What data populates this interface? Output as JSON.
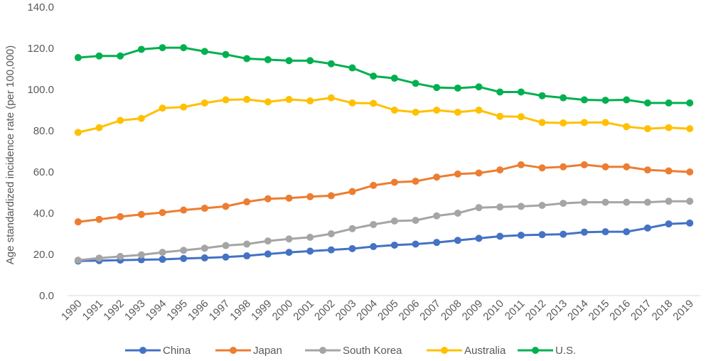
{
  "chart_data": {
    "type": "line",
    "title": "",
    "xlabel": "",
    "ylabel": "Age standardized incidence rate (per 100,000)",
    "ylim": [
      0,
      140
    ],
    "yticks": [
      "0.0",
      "20.0",
      "40.0",
      "60.0",
      "80.0",
      "100.0",
      "120.0",
      "140.0"
    ],
    "ytick_values": [
      0,
      20,
      40,
      60,
      80,
      100,
      120,
      140
    ],
    "grid": false,
    "legend_position": "bottom",
    "x": [
      "1990",
      "1991",
      "1992",
      "1993",
      "1994",
      "1995",
      "1996",
      "1997",
      "1998",
      "1999",
      "2000",
      "2001",
      "2002",
      "2003",
      "2004",
      "2005",
      "2006",
      "2007",
      "2008",
      "2009",
      "2010",
      "2011",
      "2012",
      "2013",
      "2014",
      "2015",
      "2016",
      "2017",
      "2018",
      "2019"
    ],
    "series": [
      {
        "name": "China",
        "color": "#4472C4",
        "values": [
          16.8,
          17.0,
          17.2,
          17.4,
          17.6,
          18.0,
          18.3,
          18.7,
          19.3,
          20.2,
          21.0,
          21.6,
          22.2,
          22.8,
          23.8,
          24.5,
          25.0,
          25.8,
          26.8,
          27.8,
          28.8,
          29.3,
          29.6,
          29.8,
          30.8,
          31.0,
          31.0,
          32.8,
          34.8,
          35.2
        ]
      },
      {
        "name": "Japan",
        "color": "#ED7D31",
        "values": [
          35.8,
          37.0,
          38.3,
          39.4,
          40.3,
          41.5,
          42.4,
          43.3,
          45.5,
          47.0,
          47.3,
          48.0,
          48.5,
          50.5,
          53.5,
          55.0,
          55.5,
          57.5,
          59.0,
          59.5,
          61.0,
          63.5,
          62.0,
          62.5,
          63.5,
          62.5,
          62.5,
          61.0,
          60.5,
          60.0
        ]
      },
      {
        "name": "South Korea",
        "color": "#A5A5A5",
        "values": [
          17.2,
          18.2,
          19.0,
          19.8,
          21.0,
          22.0,
          23.0,
          24.3,
          25.0,
          26.5,
          27.5,
          28.3,
          30.0,
          32.5,
          34.5,
          36.2,
          36.5,
          38.7,
          40.0,
          42.7,
          43.0,
          43.3,
          43.8,
          44.8,
          45.3,
          45.3,
          45.3,
          45.3,
          45.8,
          45.8
        ]
      },
      {
        "name": "Australia",
        "color": "#FFC000",
        "values": [
          79.2,
          81.5,
          85.0,
          86.0,
          91.0,
          91.5,
          93.5,
          95.0,
          95.2,
          94.0,
          95.2,
          94.5,
          96.0,
          93.5,
          93.3,
          90.0,
          89.0,
          90.0,
          89.0,
          90.0,
          87.0,
          86.8,
          84.0,
          83.8,
          84.0,
          84.0,
          82.0,
          81.0,
          81.5,
          81.0
        ]
      },
      {
        "name": "U.S.",
        "color": "#00B050",
        "values": [
          115.5,
          116.3,
          116.3,
          119.5,
          120.3,
          120.3,
          118.5,
          117.0,
          115.0,
          114.5,
          114.0,
          114.0,
          112.5,
          110.5,
          106.5,
          105.5,
          103.0,
          101.0,
          100.7,
          101.3,
          98.8,
          98.8,
          97.0,
          96.0,
          95.0,
          94.8,
          95.0,
          93.5,
          93.5,
          93.5
        ]
      }
    ]
  }
}
